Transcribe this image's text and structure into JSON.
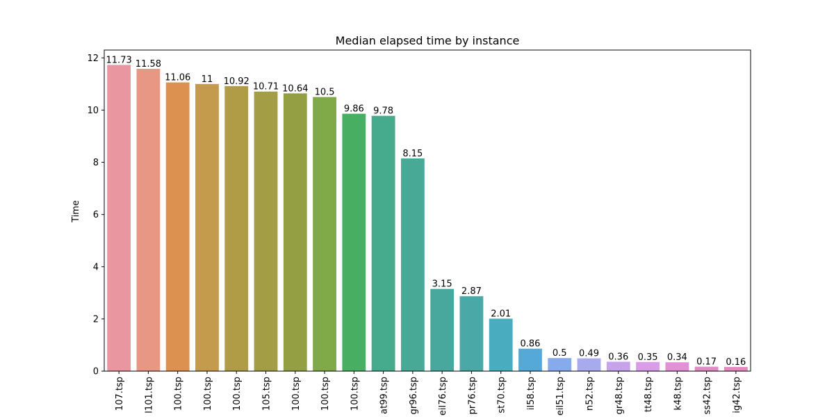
{
  "chart_data": {
    "type": "bar",
    "title": "Median elapsed time by instance",
    "xlabel": "",
    "ylabel": "Time",
    "ylim": [
      0,
      12.3
    ],
    "yticks": [
      0,
      2,
      4,
      6,
      8,
      10,
      12
    ],
    "grid": false,
    "categories": [
      "107.tsp",
      "l101.tsp",
      "100.tsp",
      "100.tsp",
      "100.tsp",
      "105.tsp",
      "100.tsp",
      "100.tsp",
      "100.tsp",
      "at99.tsp",
      "gr96.tsp",
      "eil76.tsp",
      "pr76.tsp",
      "st70.tsp",
      "il58.tsp",
      "eil51.tsp",
      "n52.tsp",
      "gr48.tsp",
      "tt48.tsp",
      "k48.tsp",
      "ss42.tsp",
      "ig42.tsp"
    ],
    "values": [
      11.73,
      11.58,
      11.06,
      11,
      10.92,
      10.71,
      10.64,
      10.5,
      9.86,
      9.78,
      8.15,
      3.15,
      2.87,
      2.01,
      0.86,
      0.5,
      0.49,
      0.36,
      0.35,
      0.34,
      0.17,
      0.16
    ],
    "labels": [
      "11.73",
      "11.58",
      "11.06",
      "11",
      "10.92",
      "10.71",
      "10.64",
      "10.5",
      "9.86",
      "9.78",
      "8.15",
      "3.15",
      "2.87",
      "2.01",
      "0.86",
      "0.5",
      "0.49",
      "0.36",
      "0.35",
      "0.34",
      "0.17",
      "0.16"
    ],
    "colors": [
      "#ea96a0",
      "#e89784",
      "#dc9150",
      "#c49a4c",
      "#b09b47",
      "#a39e45",
      "#949f44",
      "#80aa47",
      "#48ae62",
      "#46ab8d",
      "#47a996",
      "#49a89e",
      "#4aa8a6",
      "#4aacbf",
      "#55a9d8",
      "#86aaeb",
      "#a7aaed",
      "#c6a3ea",
      "#d89ce9",
      "#e391d7",
      "#e08cc4",
      "#e38bbe"
    ]
  }
}
